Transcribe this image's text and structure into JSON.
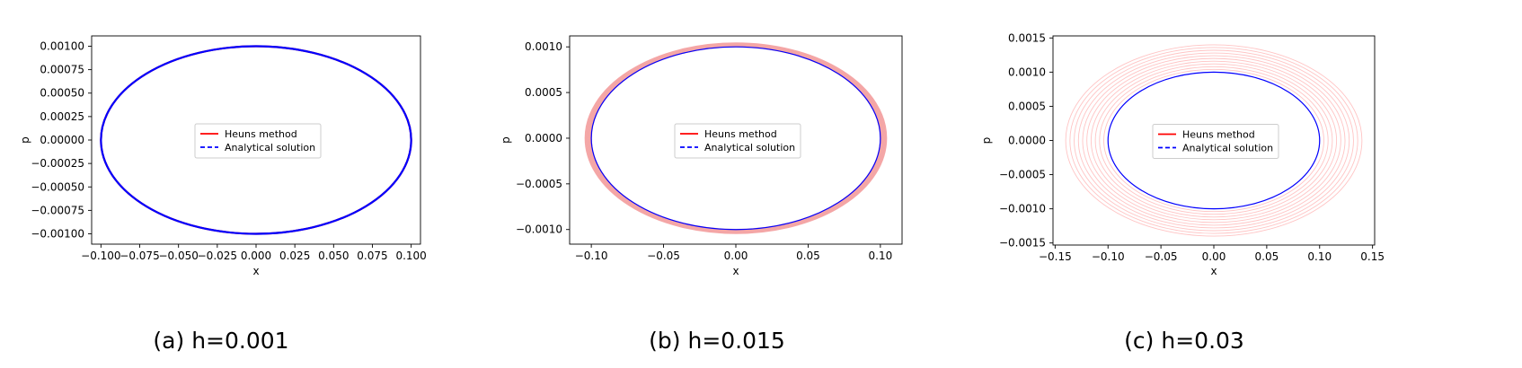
{
  "colors": {
    "heun": "#ff0000",
    "analytical": "#0000ff",
    "heun_band_b": "#f4a6a6",
    "heun_faint_c": "#ffc4c4"
  },
  "chart_data": [
    {
      "type": "line",
      "caption": "(a) h=0.001",
      "xlabel": "x",
      "ylabel": "p",
      "xlim": [
        -0.106,
        0.106
      ],
      "ylim": [
        -0.00111,
        0.00111
      ],
      "xticks": [
        -0.1,
        -0.075,
        -0.05,
        -0.025,
        0.0,
        0.025,
        0.05,
        0.075,
        0.1
      ],
      "xtick_labels": [
        "−0.100",
        "−0.075",
        "−0.050",
        "−0.025",
        "0.000",
        "0.025",
        "0.050",
        "0.075",
        "0.100"
      ],
      "yticks": [
        -0.001,
        -0.00075,
        -0.0005,
        -0.00025,
        0.0,
        0.00025,
        0.0005,
        0.00075,
        0.001
      ],
      "ytick_labels": [
        "−0.00100",
        "−0.00075",
        "−0.00050",
        "−0.00025",
        "0.00000",
        "0.00025",
        "0.00050",
        "0.00075",
        "0.00100"
      ],
      "grid": false,
      "legend_position": "center",
      "series": [
        {
          "name": "Heuns method",
          "style": "solid",
          "color": "#ff0000",
          "ellipse": {
            "x_amplitude": 0.1,
            "p_amplitude": 0.001
          },
          "orbits": [
            {
              "x_amplitude": 0.1,
              "p_amplitude": 0.001
            }
          ]
        },
        {
          "name": "Analytical solution",
          "style": "dashed",
          "color": "#0000ff",
          "ellipse": {
            "x_amplitude": 0.1,
            "p_amplitude": 0.001
          }
        }
      ]
    },
    {
      "type": "line",
      "caption": "(b) h=0.015",
      "xlabel": "x",
      "ylabel": "p",
      "xlim": [
        -0.115,
        0.115
      ],
      "ylim": [
        -0.00116,
        0.00112
      ],
      "xticks": [
        -0.1,
        -0.05,
        0.0,
        0.05,
        0.1
      ],
      "xtick_labels": [
        "−0.10",
        "−0.05",
        "0.00",
        "0.05",
        "0.10"
      ],
      "yticks": [
        -0.001,
        -0.0005,
        0.0,
        0.0005,
        0.001
      ],
      "ytick_labels": [
        "−0.0010",
        "−0.0005",
        "0.0000",
        "0.0005",
        "0.0010"
      ],
      "grid": false,
      "legend_position": "center",
      "series": [
        {
          "name": "Heuns method",
          "style": "solid",
          "color": "#f4a6a6",
          "orbits": [
            {
              "x_amplitude": 0.1,
              "p_amplitude": 0.001
            },
            {
              "x_amplitude": 0.1007,
              "p_amplitude": 0.001007
            },
            {
              "x_amplitude": 0.1014,
              "p_amplitude": 0.001014
            },
            {
              "x_amplitude": 0.1021,
              "p_amplitude": 0.001021
            },
            {
              "x_amplitude": 0.1028,
              "p_amplitude": 0.001028
            },
            {
              "x_amplitude": 0.1035,
              "p_amplitude": 0.001035
            },
            {
              "x_amplitude": 0.1042,
              "p_amplitude": 0.001042
            }
          ]
        },
        {
          "name": "Analytical solution",
          "style": "dashed",
          "color": "#0000ff",
          "ellipse": {
            "x_amplitude": 0.1,
            "p_amplitude": 0.001
          }
        }
      ]
    },
    {
      "type": "line",
      "caption": "(c) h=0.03",
      "xlabel": "x",
      "ylabel": "p",
      "xlim": [
        -0.152,
        0.152
      ],
      "ylim": [
        -0.00153,
        0.00153
      ],
      "xticks": [
        -0.15,
        -0.1,
        -0.05,
        0.0,
        0.05,
        0.1,
        0.15
      ],
      "xtick_labels": [
        "−0.15",
        "−0.10",
        "−0.05",
        "0.00",
        "0.05",
        "0.10",
        "0.15"
      ],
      "yticks": [
        -0.0015,
        -0.001,
        -0.0005,
        0.0,
        0.0005,
        0.001,
        0.0015
      ],
      "ytick_labels": [
        "−0.0015",
        "−0.0010",
        "−0.0005",
        "0.0000",
        "0.0005",
        "0.0010",
        "0.0015"
      ],
      "grid": false,
      "legend_position": "center",
      "series": [
        {
          "name": "Heuns method",
          "style": "solid",
          "color": "#ffc4c4",
          "orbits": [
            {
              "x_amplitude": 0.1,
              "p_amplitude": 0.001
            },
            {
              "x_amplitude": 0.104,
              "p_amplitude": 0.00104
            },
            {
              "x_amplitude": 0.108,
              "p_amplitude": 0.00108
            },
            {
              "x_amplitude": 0.112,
              "p_amplitude": 0.00112
            },
            {
              "x_amplitude": 0.116,
              "p_amplitude": 0.00116
            },
            {
              "x_amplitude": 0.12,
              "p_amplitude": 0.0012
            },
            {
              "x_amplitude": 0.124,
              "p_amplitude": 0.00124
            },
            {
              "x_amplitude": 0.128,
              "p_amplitude": 0.00128
            },
            {
              "x_amplitude": 0.132,
              "p_amplitude": 0.00132
            },
            {
              "x_amplitude": 0.136,
              "p_amplitude": 0.00136
            },
            {
              "x_amplitude": 0.14,
              "p_amplitude": 0.0014
            }
          ]
        },
        {
          "name": "Analytical solution",
          "style": "dashed",
          "color": "#0000ff",
          "ellipse": {
            "x_amplitude": 0.1,
            "p_amplitude": 0.001
          }
        }
      ]
    }
  ]
}
